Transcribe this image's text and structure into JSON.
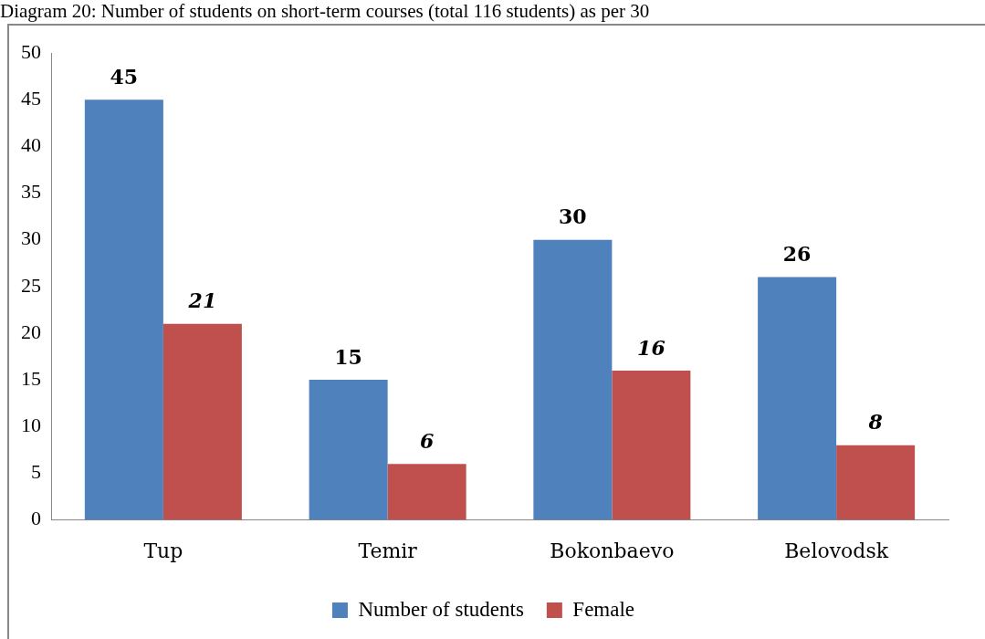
{
  "chart_data": {
    "type": "bar",
    "title": "Diagram 20:   Number of students on short-term courses (total 116 students) as per 30",
    "categories": [
      "Tup",
      "Temir",
      "Bokonbaevo",
      "Belovodsk"
    ],
    "series": [
      {
        "name": "Number of students",
        "color": "#4f81bd",
        "values": [
          45,
          15,
          30,
          26
        ]
      },
      {
        "name": "Female",
        "color": "#c0504d",
        "values": [
          21,
          6,
          16,
          8
        ]
      }
    ],
    "ylim": [
      0,
      50
    ],
    "yticks": [
      0,
      5,
      10,
      15,
      20,
      25,
      30,
      35,
      40,
      45,
      50
    ],
    "grid": false,
    "legend": "bottom",
    "data_labels": true
  }
}
